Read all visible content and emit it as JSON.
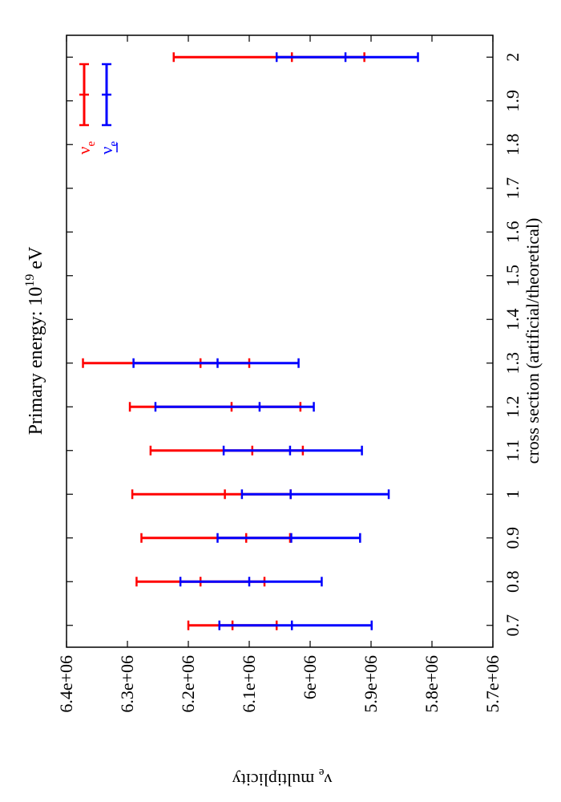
{
  "chart_data": {
    "type": "errorbar",
    "title": "Primary energy: 10^19 eV",
    "title_parts": {
      "prefix": "Primary energy: 10",
      "exponent": "19",
      "suffix": " eV"
    },
    "xlabel": "cross section (artificial/theoretical)",
    "ylabel": "ν_e multiplicity",
    "ylabel_parts": {
      "symbol": "ν",
      "subscript": "e",
      "rest": " multiplicity"
    },
    "x_axis_range": [
      0.65,
      2.05
    ],
    "y_axis_range": [
      5700000,
      6400000
    ],
    "x_ticks": [
      "0.7",
      "0.8",
      "0.9",
      "1",
      "1.1",
      "1.2",
      "1.3",
      "1.4",
      "1.5",
      "1.6",
      "1.7",
      "1.8",
      "1.9",
      "2"
    ],
    "x_tick_values": [
      0.7,
      0.8,
      0.9,
      1.0,
      1.1,
      1.2,
      1.3,
      1.4,
      1.5,
      1.6,
      1.7,
      1.8,
      1.9,
      2.0
    ],
    "y_ticks": [
      "5.7e+06",
      "5.8e+06",
      "5.9e+06",
      "6e+06",
      "6.1e+06",
      "6.2e+06",
      "6.3e+06",
      "6.4e+06"
    ],
    "y_tick_values": [
      5700000,
      5800000,
      5900000,
      6000000,
      6100000,
      6200000,
      6300000,
      6400000
    ],
    "legend_position": "top-right",
    "series": [
      {
        "name": "ν_e",
        "color": "#ff0000",
        "points": [
          {
            "x": 0.7,
            "y": 6127500,
            "low": 6055000,
            "high": 6200000
          },
          {
            "x": 0.8,
            "y": 6180000,
            "low": 6075000,
            "high": 6285000
          },
          {
            "x": 0.9,
            "y": 6105000,
            "low": 6033000,
            "high": 6277000
          },
          {
            "x": 1.0,
            "y": 6140000,
            "low": 6032000,
            "high": 6292000
          },
          {
            "x": 1.1,
            "y": 6095000,
            "low": 6012000,
            "high": 6262000
          },
          {
            "x": 1.2,
            "y": 6129000,
            "low": 6016000,
            "high": 6296000
          },
          {
            "x": 1.3,
            "y": 6180000,
            "low": 6100000,
            "high": 6373000
          },
          {
            "x": 2.0,
            "y": 6030000,
            "low": 5911000,
            "high": 6224000
          }
        ]
      },
      {
        "name": "ν̄_e",
        "color": "#0000ff",
        "points": [
          {
            "x": 0.7,
            "y": 6030000,
            "low": 5899000,
            "high": 6149000
          },
          {
            "x": 0.8,
            "y": 6100000,
            "low": 5981000,
            "high": 6213000
          },
          {
            "x": 0.9,
            "y": 6031000,
            "low": 5918000,
            "high": 6152000
          },
          {
            "x": 1.0,
            "y": 6032000,
            "low": 5871000,
            "high": 6112000
          },
          {
            "x": 1.1,
            "y": 6033000,
            "low": 5915000,
            "high": 6142000
          },
          {
            "x": 1.2,
            "y": 6083000,
            "low": 5994000,
            "high": 6254000
          },
          {
            "x": 1.3,
            "y": 6152000,
            "low": 6019000,
            "high": 6290000
          },
          {
            "x": 2.0,
            "y": 5942000,
            "low": 5823000,
            "high": 6055000
          }
        ]
      }
    ],
    "legend": [
      {
        "symbol": "ν",
        "subscript": "e",
        "bar": false,
        "color": "#ff0000"
      },
      {
        "symbol": "ν",
        "subscript": "e",
        "bar": true,
        "color": "#0000ff"
      }
    ]
  }
}
